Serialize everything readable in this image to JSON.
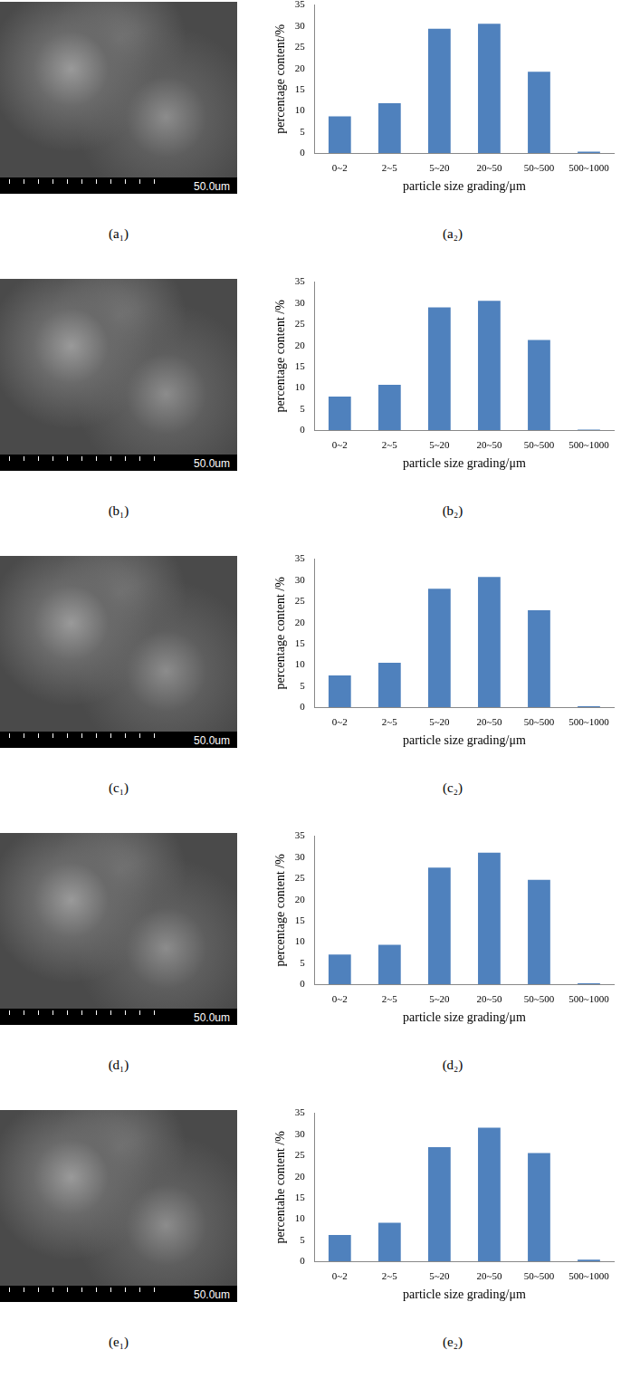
{
  "chart_data": [
    {
      "type": "bar",
      "categories": [
        "0~2",
        "2~5",
        "5~20",
        "20~50",
        "50~500",
        "500~1000"
      ],
      "values": [
        8.7,
        11.8,
        29.4,
        30.6,
        19.2,
        0.3
      ],
      "color": "#4f81bd",
      "x_label": "particle size grading/μm",
      "y_label": "percentage content/%",
      "ylim": [
        0,
        35
      ],
      "yticks": [
        0,
        5,
        10,
        15,
        20,
        25,
        30,
        35
      ],
      "grid": false
    },
    {
      "type": "bar",
      "categories": [
        "0~2",
        "2~5",
        "5~20",
        "20~50",
        "50~500",
        "500~1000"
      ],
      "values": [
        7.9,
        10.7,
        29.0,
        30.6,
        21.3,
        0.1
      ],
      "color": "#4f81bd",
      "x_label": "particle size grading/μm",
      "y_label": "percentage content /%",
      "ylim": [
        0,
        35
      ],
      "yticks": [
        0,
        5,
        10,
        15,
        20,
        25,
        30,
        35
      ],
      "grid": false
    },
    {
      "type": "bar",
      "categories": [
        "0~2",
        "2~5",
        "5~20",
        "20~50",
        "50~500",
        "500~1000"
      ],
      "values": [
        7.5,
        10.5,
        28.0,
        30.8,
        22.9,
        0.2
      ],
      "color": "#4f81bd",
      "x_label": "particle size grading/μm",
      "y_label": "percentage content /%",
      "ylim": [
        0,
        35
      ],
      "yticks": [
        0,
        5,
        10,
        15,
        20,
        25,
        30,
        35
      ],
      "grid": false
    },
    {
      "type": "bar",
      "categories": [
        "0~2",
        "2~5",
        "5~20",
        "20~50",
        "50~500",
        "500~1000"
      ],
      "values": [
        7.0,
        9.3,
        27.6,
        31.1,
        24.7,
        0.2
      ],
      "color": "#4f81bd",
      "x_label": "particle size grading/μm",
      "y_label": "percentage content /%",
      "ylim": [
        0,
        35
      ],
      "yticks": [
        0,
        5,
        10,
        15,
        20,
        25,
        30,
        35
      ],
      "grid": false
    },
    {
      "type": "bar",
      "categories": [
        "0~2",
        "2~5",
        "5~20",
        "20~50",
        "50~500",
        "500~1000"
      ],
      "values": [
        6.2,
        9.1,
        27.0,
        31.6,
        25.6,
        0.4
      ],
      "color": "#4f81bd",
      "x_label": "particle size grading/μm",
      "y_label": "percentahe content /%",
      "ylim": [
        0,
        35
      ],
      "yticks": [
        0,
        5,
        10,
        15,
        20,
        25,
        30,
        35
      ],
      "grid": false
    }
  ],
  "images": [
    {
      "label": "(a₁)",
      "scale_bar": "50.0um"
    },
    {
      "label": "(b₁)",
      "scale_bar": "50.0um"
    },
    {
      "label": "(c₁)",
      "scale_bar": "50.0um"
    },
    {
      "label": "(d₁)",
      "scale_bar": "50.0um"
    },
    {
      "label": "(e₁)",
      "scale_bar": "50.0um"
    }
  ],
  "chart_labels": [
    "(a₂)",
    "(b₂)",
    "(c₂)",
    "(d₂)",
    "(e₂)"
  ]
}
